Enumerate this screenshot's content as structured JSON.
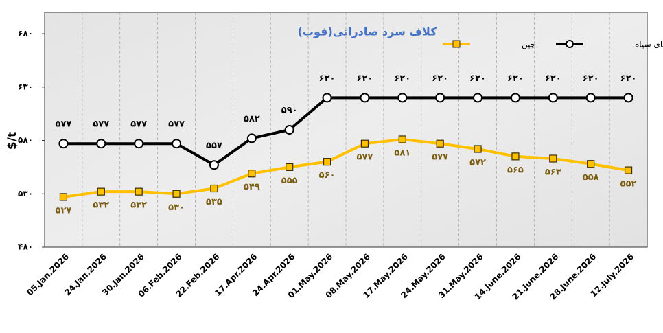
{
  "chart_data": {
    "type": "line",
    "title": "کلاف سرد صادراتی(فوب)",
    "y_label": "$/t",
    "categories": [
      "05.Jan.2026",
      "24.Jan.2026",
      "30.Jan.2026",
      "06.Feb.2026",
      "22.Feb.2026",
      "17.Apr.2026",
      "24.Apr.2026",
      "01.May.2026",
      "08.May.2026",
      "17.May.2026",
      "24.May.2026",
      "31.May.2026",
      "14.June.2026",
      "21.June.2026",
      "28.June.2026",
      "12.July.2026"
    ],
    "series": [
      {
        "name": "دریای سیاه",
        "color": "#000000",
        "values": [
          577,
          577,
          577,
          577,
          557,
          582,
          590,
          620,
          620,
          620,
          620,
          620,
          620,
          620,
          620,
          620
        ],
        "value_labels": [
          "۵۷۷",
          "۵۷۷",
          "۵۷۷",
          "۵۷۷",
          "۵۵۷",
          "۵۸۲",
          "۵۹۰",
          "۶۲۰",
          "۶۲۰",
          "۶۲۰",
          "۶۲۰",
          "۶۲۰",
          "۶۲۰",
          "۶۲۰",
          "۶۲۰",
          "۶۲۰"
        ]
      },
      {
        "name": "چین",
        "color": "#ffc000",
        "values": [
          527,
          532,
          532,
          530,
          535,
          549,
          555,
          560,
          577,
          581,
          577,
          572,
          565,
          563,
          558,
          552
        ],
        "value_labels": [
          "۵۲۷",
          "۵۳۲",
          "۵۳۲",
          "۵۳۰",
          "۵۳۵",
          "۵۴۹",
          "۵۵۵",
          "۵۶۰",
          "۵۷۷",
          "۵۸۱",
          "۵۷۷",
          "۵۷۲",
          "۵۶۵",
          "۵۶۳",
          "۵۵۸",
          "۵۵۲"
        ]
      }
    ],
    "ylim": [
      480,
      700
    ],
    "yticks": [
      {
        "value": 480,
        "label": "۴۸۰"
      },
      {
        "value": 530,
        "label": "۵۳۰"
      },
      {
        "value": 580,
        "label": "۵۸۰"
      },
      {
        "value": 630,
        "label": "۶۳۰"
      },
      {
        "value": 680,
        "label": "۶۸۰"
      }
    ],
    "legend": "top-right"
  }
}
